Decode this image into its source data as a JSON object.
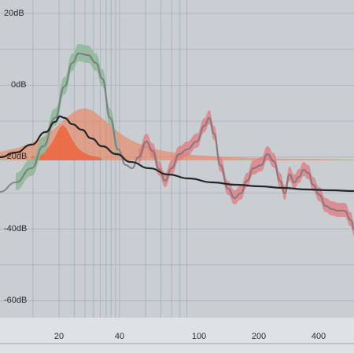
{
  "eq_analyzer": {
    "y_axis_labels": [
      "20dB",
      "0dB",
      "-20dB",
      "-40dB",
      "-60dB"
    ],
    "x_axis_labels": [
      "20",
      "40",
      "100",
      "200",
      "400"
    ],
    "colors": {
      "background": "#c9ced2",
      "grid_line": "#a9b0b6",
      "axis_strip": "#dfe2e5",
      "label_text": "#2b2f33",
      "green_band": "#8fb79a",
      "red_band": "#e07a7f",
      "orange_fill": "#f07a50",
      "orange_fill_strong": "#ee5d33",
      "response_curve": "#262626"
    }
  }
}
